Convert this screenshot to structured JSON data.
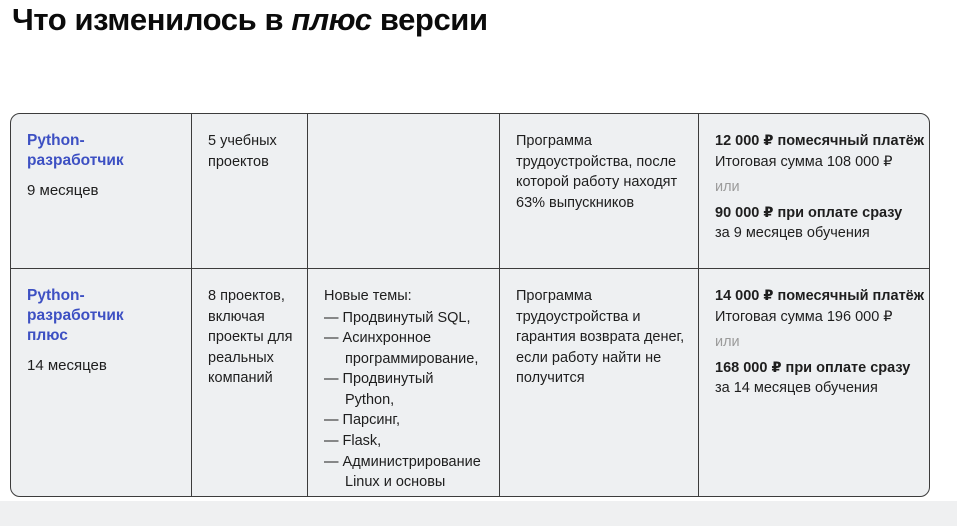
{
  "header": {
    "title_prefix": "Что изменилось в ",
    "title_italic": "плюс",
    "title_suffix": " версии"
  },
  "colors": {
    "accent_blue": "#3d50c3",
    "muted_gray": "#9b9b9b",
    "cell_background": "#eef0f2",
    "border": "#3c3c3c"
  },
  "table": {
    "rows": [
      {
        "course_name": "Python-разработчик",
        "course_plus": "",
        "duration": "9 месяцев",
        "projects": "5 учебных проектов",
        "topics_heading": "",
        "topics": [],
        "employment": "Программа трудоустройства, после которой работу находят 63% выпускников",
        "pricing": {
          "monthly": "12 000 ₽ помесячный платёж",
          "total": "Итоговая сумма 108 000 ₽",
          "or_word": "или",
          "upfront": "90 000 ₽ при оплате сразу",
          "upfront_note": "за 9 месяцев обучения"
        }
      },
      {
        "course_name": "Python-разработчик",
        "course_plus": "плюс",
        "duration": "14 месяцев",
        "projects": "8 проектов, включая проекты для реальных компаний",
        "topics_heading": "Новые темы:",
        "topics": [
          "— Продвинутый SQL,",
          "— Асинхронное программирование,",
          "— Продвинутый Python,",
          "— Парсинг,",
          "— Flask,",
          "— Администрирование Linux и основы сетей."
        ],
        "employment": "Программа трудоустройства и гарантия возврата денег, если работу найти не получится",
        "pricing": {
          "monthly": "14 000 ₽ помесячный платёж",
          "total": "Итоговая сумма 196 000 ₽",
          "or_word": "или",
          "upfront": "168 000 ₽ при оплате сразу",
          "upfront_note": "за 14 месяцев обучения"
        }
      }
    ]
  }
}
